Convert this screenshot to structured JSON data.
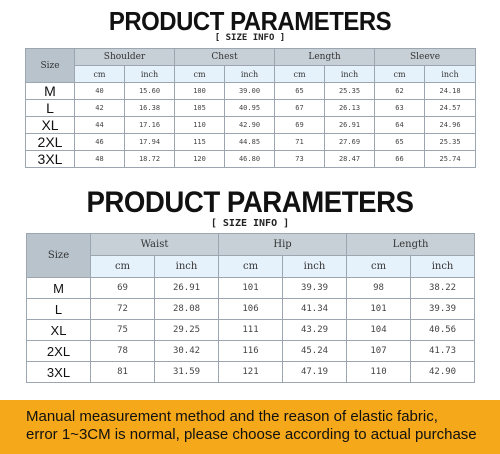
{
  "top": {
    "title": "PRODUCT PARAMETERS",
    "subtitle": "[ SIZE INFO ]",
    "size_header": "Size",
    "groups": [
      "Shoulder",
      "Chest",
      "Length",
      "Sleeve"
    ],
    "unit_cm": "cm",
    "unit_inch": "inch",
    "rows": [
      {
        "size": "M",
        "values": [
          "40",
          "15.60",
          "100",
          "39.00",
          "65",
          "25.35",
          "62",
          "24.18"
        ]
      },
      {
        "size": "L",
        "values": [
          "42",
          "16.38",
          "105",
          "40.95",
          "67",
          "26.13",
          "63",
          "24.57"
        ]
      },
      {
        "size": "XL",
        "values": [
          "44",
          "17.16",
          "110",
          "42.90",
          "69",
          "26.91",
          "64",
          "24.96"
        ]
      },
      {
        "size": "2XL",
        "values": [
          "46",
          "17.94",
          "115",
          "44.85",
          "71",
          "27.69",
          "65",
          "25.35"
        ]
      },
      {
        "size": "3XL",
        "values": [
          "48",
          "18.72",
          "120",
          "46.80",
          "73",
          "28.47",
          "66",
          "25.74"
        ]
      }
    ]
  },
  "bottom": {
    "title": "PRODUCT PARAMETERS",
    "subtitle": "[ SIZE INFO ]",
    "size_header": "Size",
    "groups": [
      "Waist",
      "Hip",
      "Length"
    ],
    "unit_cm": "cm",
    "unit_inch": "inch",
    "rows": [
      {
        "size": "M",
        "values": [
          "69",
          "26.91",
          "101",
          "39.39",
          "98",
          "38.22"
        ]
      },
      {
        "size": "L",
        "values": [
          "72",
          "28.08",
          "106",
          "41.34",
          "101",
          "39.39"
        ]
      },
      {
        "size": "XL",
        "values": [
          "75",
          "29.25",
          "111",
          "43.29",
          "104",
          "40.56"
        ]
      },
      {
        "size": "2XL",
        "values": [
          "78",
          "30.42",
          "116",
          "45.24",
          "107",
          "41.73"
        ]
      },
      {
        "size": "3XL",
        "values": [
          "81",
          "31.59",
          "121",
          "47.19",
          "110",
          "42.90"
        ]
      }
    ]
  },
  "note": {
    "line1": "Manual measurement method and the reason of elastic fabric,",
    "line2": "error 1~3CM is normal, please choose according to actual purchase"
  },
  "colors": {
    "header_gray": "#c7d0d7",
    "unit_blue": "#e6f2fb",
    "banner_orange": "#f5a81a"
  }
}
